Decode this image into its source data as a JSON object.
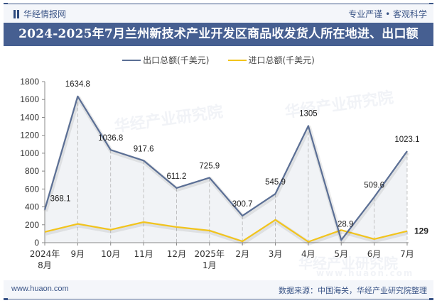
{
  "header": {
    "brand": "华经情报网",
    "tagline": "专业严谨 • 客观科学",
    "title": "2024-2025年7月兰州新技术产业开发区商品收发货人所在地进、出口额"
  },
  "legend": [
    {
      "label": "出口总额(千美元)",
      "color": "#5b6f95"
    },
    {
      "label": "进口总额(千美元)",
      "color": "#f2c41c"
    }
  ],
  "watermarks": [
    "华经产业研究院",
    "华经产业研究院",
    "华经产业研究院",
    "www.huaon.com"
  ],
  "footer": {
    "website": "www.huaon.com",
    "source": "数据来源：中国海关，华经产业研究院整理"
  },
  "chart_data": {
    "type": "line",
    "title": "2024-2025年7月兰州新技术产业开发区商品收发货人所在地进、出口额",
    "xlabel": "",
    "ylabel": "",
    "ylim": [
      0,
      1800
    ],
    "yticks": [
      0,
      200,
      400,
      600,
      800,
      1000,
      1200,
      1400,
      1600,
      1800
    ],
    "grid": false,
    "legend_position": "top",
    "categories": [
      "2024年\n8月",
      "9月",
      "10月",
      "11月",
      "12月",
      "2025年\n1月",
      "2月",
      "3月",
      "4月",
      "5月",
      "6月",
      "7月"
    ],
    "series": [
      {
        "name": "出口总额(千美元)",
        "color": "#5b6f95",
        "values": [
          368.1,
          1634.8,
          1036.8,
          917.6,
          611.2,
          725.9,
          300.7,
          545.9,
          1305,
          28.9,
          509.6,
          1023.1
        ],
        "labels": [
          "368.1",
          "1634.8",
          "1036.8",
          "917.6",
          "611.2",
          "725.9",
          "300.7",
          "545.9",
          "1305",
          "28.9",
          "509.6",
          "1023.1"
        ]
      },
      {
        "name": "进口总额(千美元)",
        "color": "#f2c41c",
        "values": [
          120,
          210,
          145,
          230,
          175,
          135,
          15,
          255,
          10,
          140,
          40,
          129
        ],
        "labels": [
          "",
          "",
          "",
          "",
          "",
          "",
          "",
          "",
          "",
          "",
          "",
          "129"
        ]
      }
    ]
  }
}
